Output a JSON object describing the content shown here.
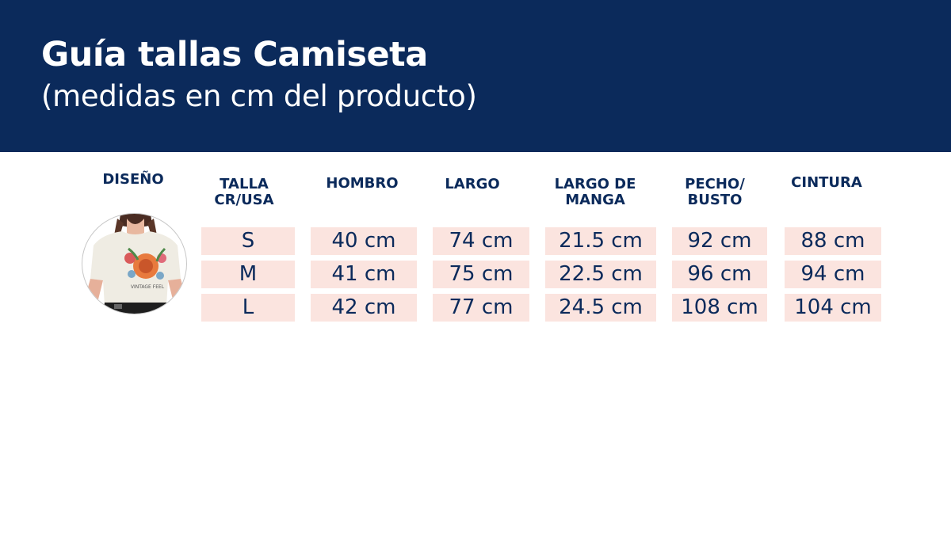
{
  "header": {
    "title": "Guía tallas Camiseta",
    "subtitle": "(medidas en cm del producto)"
  },
  "columns": {
    "diseno": "DISEÑO",
    "talla": [
      "TALLA",
      "CR/USA"
    ],
    "hombro": "HOMBRO",
    "largo": "LARGO",
    "largo_manga": [
      "LARGO DE",
      "MANGA"
    ],
    "pecho": [
      "PECHO/",
      "BUSTO"
    ],
    "cintura": "CINTURA"
  },
  "design": {
    "description_icon": "t-shirt-model-photo",
    "shirt_text": "VINTAGE FEEL"
  },
  "rows": [
    {
      "talla": "S",
      "hombro": "40 cm",
      "largo": "74 cm",
      "largo_manga": "21.5 cm",
      "pecho": "92 cm",
      "cintura": "88 cm"
    },
    {
      "talla": "M",
      "hombro": "41 cm",
      "largo": "75 cm",
      "largo_manga": "22.5 cm",
      "pecho": "96 cm",
      "cintura": "94 cm"
    },
    {
      "talla": "L",
      "hombro": "42 cm",
      "largo": "77 cm",
      "largo_manga": "24.5 cm",
      "pecho": "108 cm",
      "cintura": "104 cm"
    }
  ],
  "colors": {
    "navy": "#0b2a5b",
    "cell_bg": "#fbe4df"
  }
}
